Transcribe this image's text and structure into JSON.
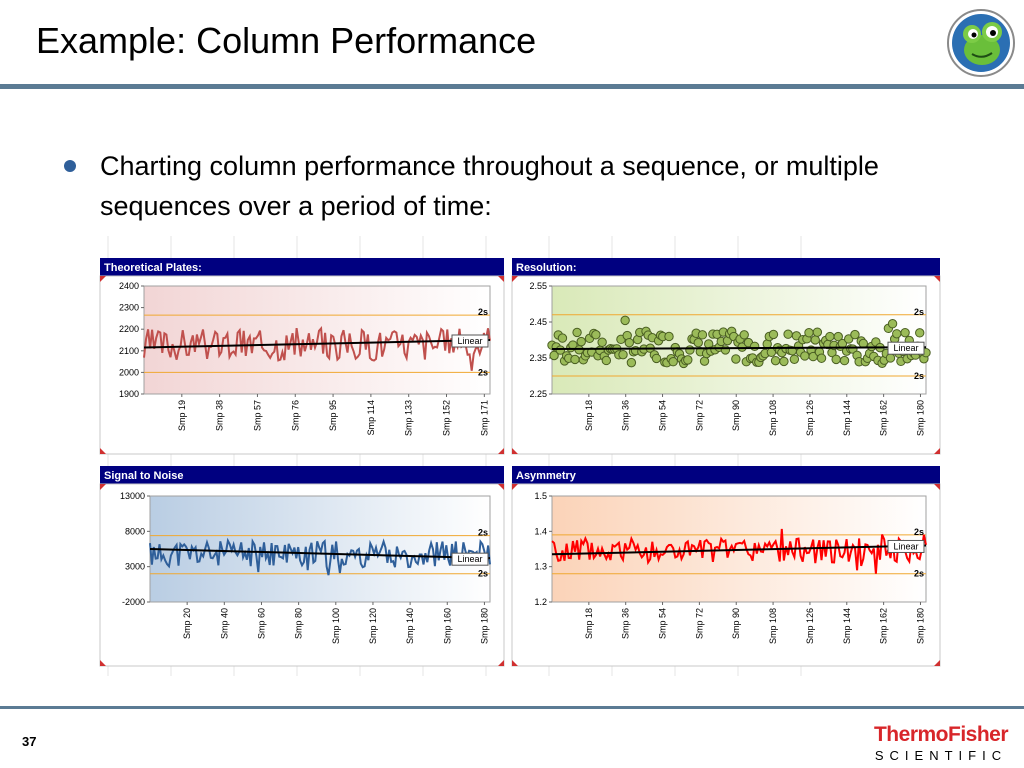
{
  "slide": {
    "title": "Example: Column Performance",
    "bullet": "Charting column performance throughout a sequence, or multiple sequences over a period of time:",
    "page_number": "37",
    "brand_top": "ThermoFisher",
    "brand_bottom": "SCIENTIFIC",
    "logo_icon": "cartoon-frog-mascot-icon"
  },
  "colors": {
    "header_bar": "#000080",
    "title_rule": "#5b7b94",
    "limit_line": "#f0a830",
    "trend_line": "#000000",
    "brand_red": "#d8262a"
  },
  "chart_data": [
    {
      "type": "line",
      "title": "Theoretical Plates:",
      "ylim": [
        1900,
        2400
      ],
      "yticks": [
        "2400",
        "2300",
        "2200",
        "2100",
        "2000",
        "1900"
      ],
      "xticks": [
        "Smp 19",
        "Smp 38",
        "Smp 57",
        "Smp 76",
        "Smp 95",
        "Smp 114",
        "Smp 133",
        "Smp 152",
        "Smp 171"
      ],
      "series_color": "#c0504d",
      "background": [
        "#f2d5d5",
        "#ffffff"
      ],
      "limits": [
        {
          "label": "2s",
          "value": 2265
        },
        {
          "label": "2s",
          "value": 2000
        }
      ],
      "trend": {
        "label": "Linear",
        "start": 2115,
        "end": 2150
      },
      "center": 2130,
      "amplitude": 75,
      "noise_seed": 3,
      "n_points": 171
    },
    {
      "type": "scatter",
      "title": "Resolution:",
      "ylim": [
        2.25,
        2.55
      ],
      "yticks": [
        "2.55",
        "2.45",
        "2.35",
        "2.25"
      ],
      "xticks": [
        "Smp 18",
        "Smp 36",
        "Smp 54",
        "Smp 72",
        "Smp 90",
        "Smp 108",
        "Smp 126",
        "Smp 144",
        "Smp 162",
        "Smp 180"
      ],
      "series_color": "#9bbb59",
      "background": [
        "#d9e9b8",
        "#ffffff"
      ],
      "limits": [
        {
          "label": "2s",
          "value": 2.47
        },
        {
          "label": "2s",
          "value": 2.3
        }
      ],
      "trend": {
        "label": "Linear",
        "start": 2.375,
        "end": 2.38
      },
      "center": 2.38,
      "amplitude": 0.045,
      "noise_seed": 7,
      "n_points": 180
    },
    {
      "type": "line",
      "title": "Signal to Noise",
      "ylim": [
        -2000,
        13000
      ],
      "yticks": [
        "13000",
        "8000",
        "3000",
        "-2000"
      ],
      "xticks": [
        "Smp 20",
        "Smp 40",
        "Smp 60",
        "Smp 80",
        "Smp 100",
        "Smp 120",
        "Smp 140",
        "Smp 160",
        "Smp 180"
      ],
      "series_color": "#2f5f9a",
      "background": [
        "#b9cde3",
        "#ffffff"
      ],
      "limits": [
        {
          "label": "2s",
          "value": 7400
        },
        {
          "label": "2s",
          "value": 2000
        }
      ],
      "trend": {
        "label": "Linear",
        "start": 5500,
        "end": 4200
      },
      "center": 4800,
      "amplitude": 1900,
      "noise_seed": 11,
      "n_points": 180
    },
    {
      "type": "line",
      "title": "Asymmetry",
      "ylim": [
        1.2,
        1.5
      ],
      "yticks": [
        "1.5",
        "1.4",
        "1.3",
        "1.2"
      ],
      "xticks": [
        "Smp 18",
        "Smp 36",
        "Smp 54",
        "Smp 72",
        "Smp 90",
        "Smp 108",
        "Smp 126",
        "Smp 144",
        "Smp 162",
        "Smp 180"
      ],
      "series_color": "#ff0000",
      "background": [
        "#fbd3b8",
        "#ffffff"
      ],
      "limits": [
        {
          "label": "2s",
          "value": 1.39
        },
        {
          "label": "2s",
          "value": 1.28
        }
      ],
      "trend": {
        "label": "Linear",
        "start": 1.335,
        "end": 1.36
      },
      "center": 1.345,
      "amplitude": 0.035,
      "noise_seed": 5,
      "n_points": 180
    }
  ]
}
